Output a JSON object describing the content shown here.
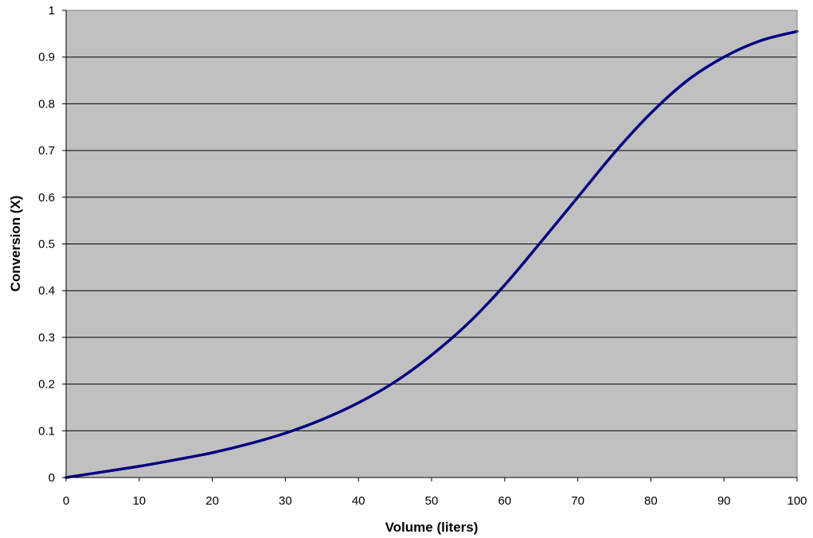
{
  "chart_data": {
    "type": "line",
    "title": "",
    "xlabel": "Volume (liters)",
    "ylabel": "Conversion (X)",
    "xlim": [
      0,
      100
    ],
    "ylim": [
      0,
      1
    ],
    "x_ticks": [
      "0",
      "10",
      "20",
      "30",
      "40",
      "50",
      "60",
      "70",
      "80",
      "90",
      "100"
    ],
    "y_ticks": [
      "0",
      "0.1",
      "0.2",
      "0.3",
      "0.4",
      "0.5",
      "0.6",
      "0.7",
      "0.8",
      "0.9",
      "1"
    ],
    "grid": "horizontal",
    "legend": "none",
    "plot_background": "#c0c0c0",
    "gridline_color": "#000000",
    "series": [
      {
        "color": "#000080",
        "x": [
          0,
          5,
          10,
          15,
          20,
          25,
          30,
          35,
          40,
          45,
          50,
          55,
          60,
          65,
          70,
          75,
          80,
          85,
          90,
          95,
          100
        ],
        "y": [
          0,
          0.012,
          0.024,
          0.038,
          0.053,
          0.072,
          0.095,
          0.124,
          0.16,
          0.205,
          0.262,
          0.33,
          0.412,
          0.505,
          0.6,
          0.695,
          0.78,
          0.85,
          0.9,
          0.935,
          0.955
        ]
      }
    ]
  }
}
